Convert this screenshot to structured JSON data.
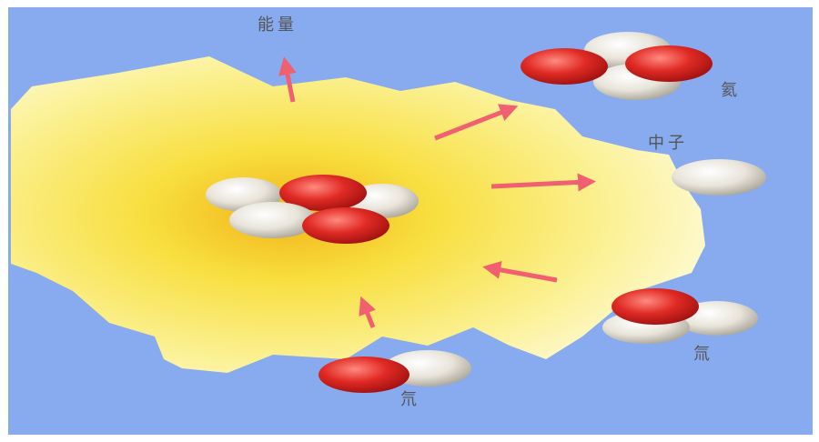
{
  "labels": {
    "energy": "能量",
    "helium": "氦",
    "neutron": "中子",
    "tritium": "氚",
    "deuterium": "氘"
  }
}
